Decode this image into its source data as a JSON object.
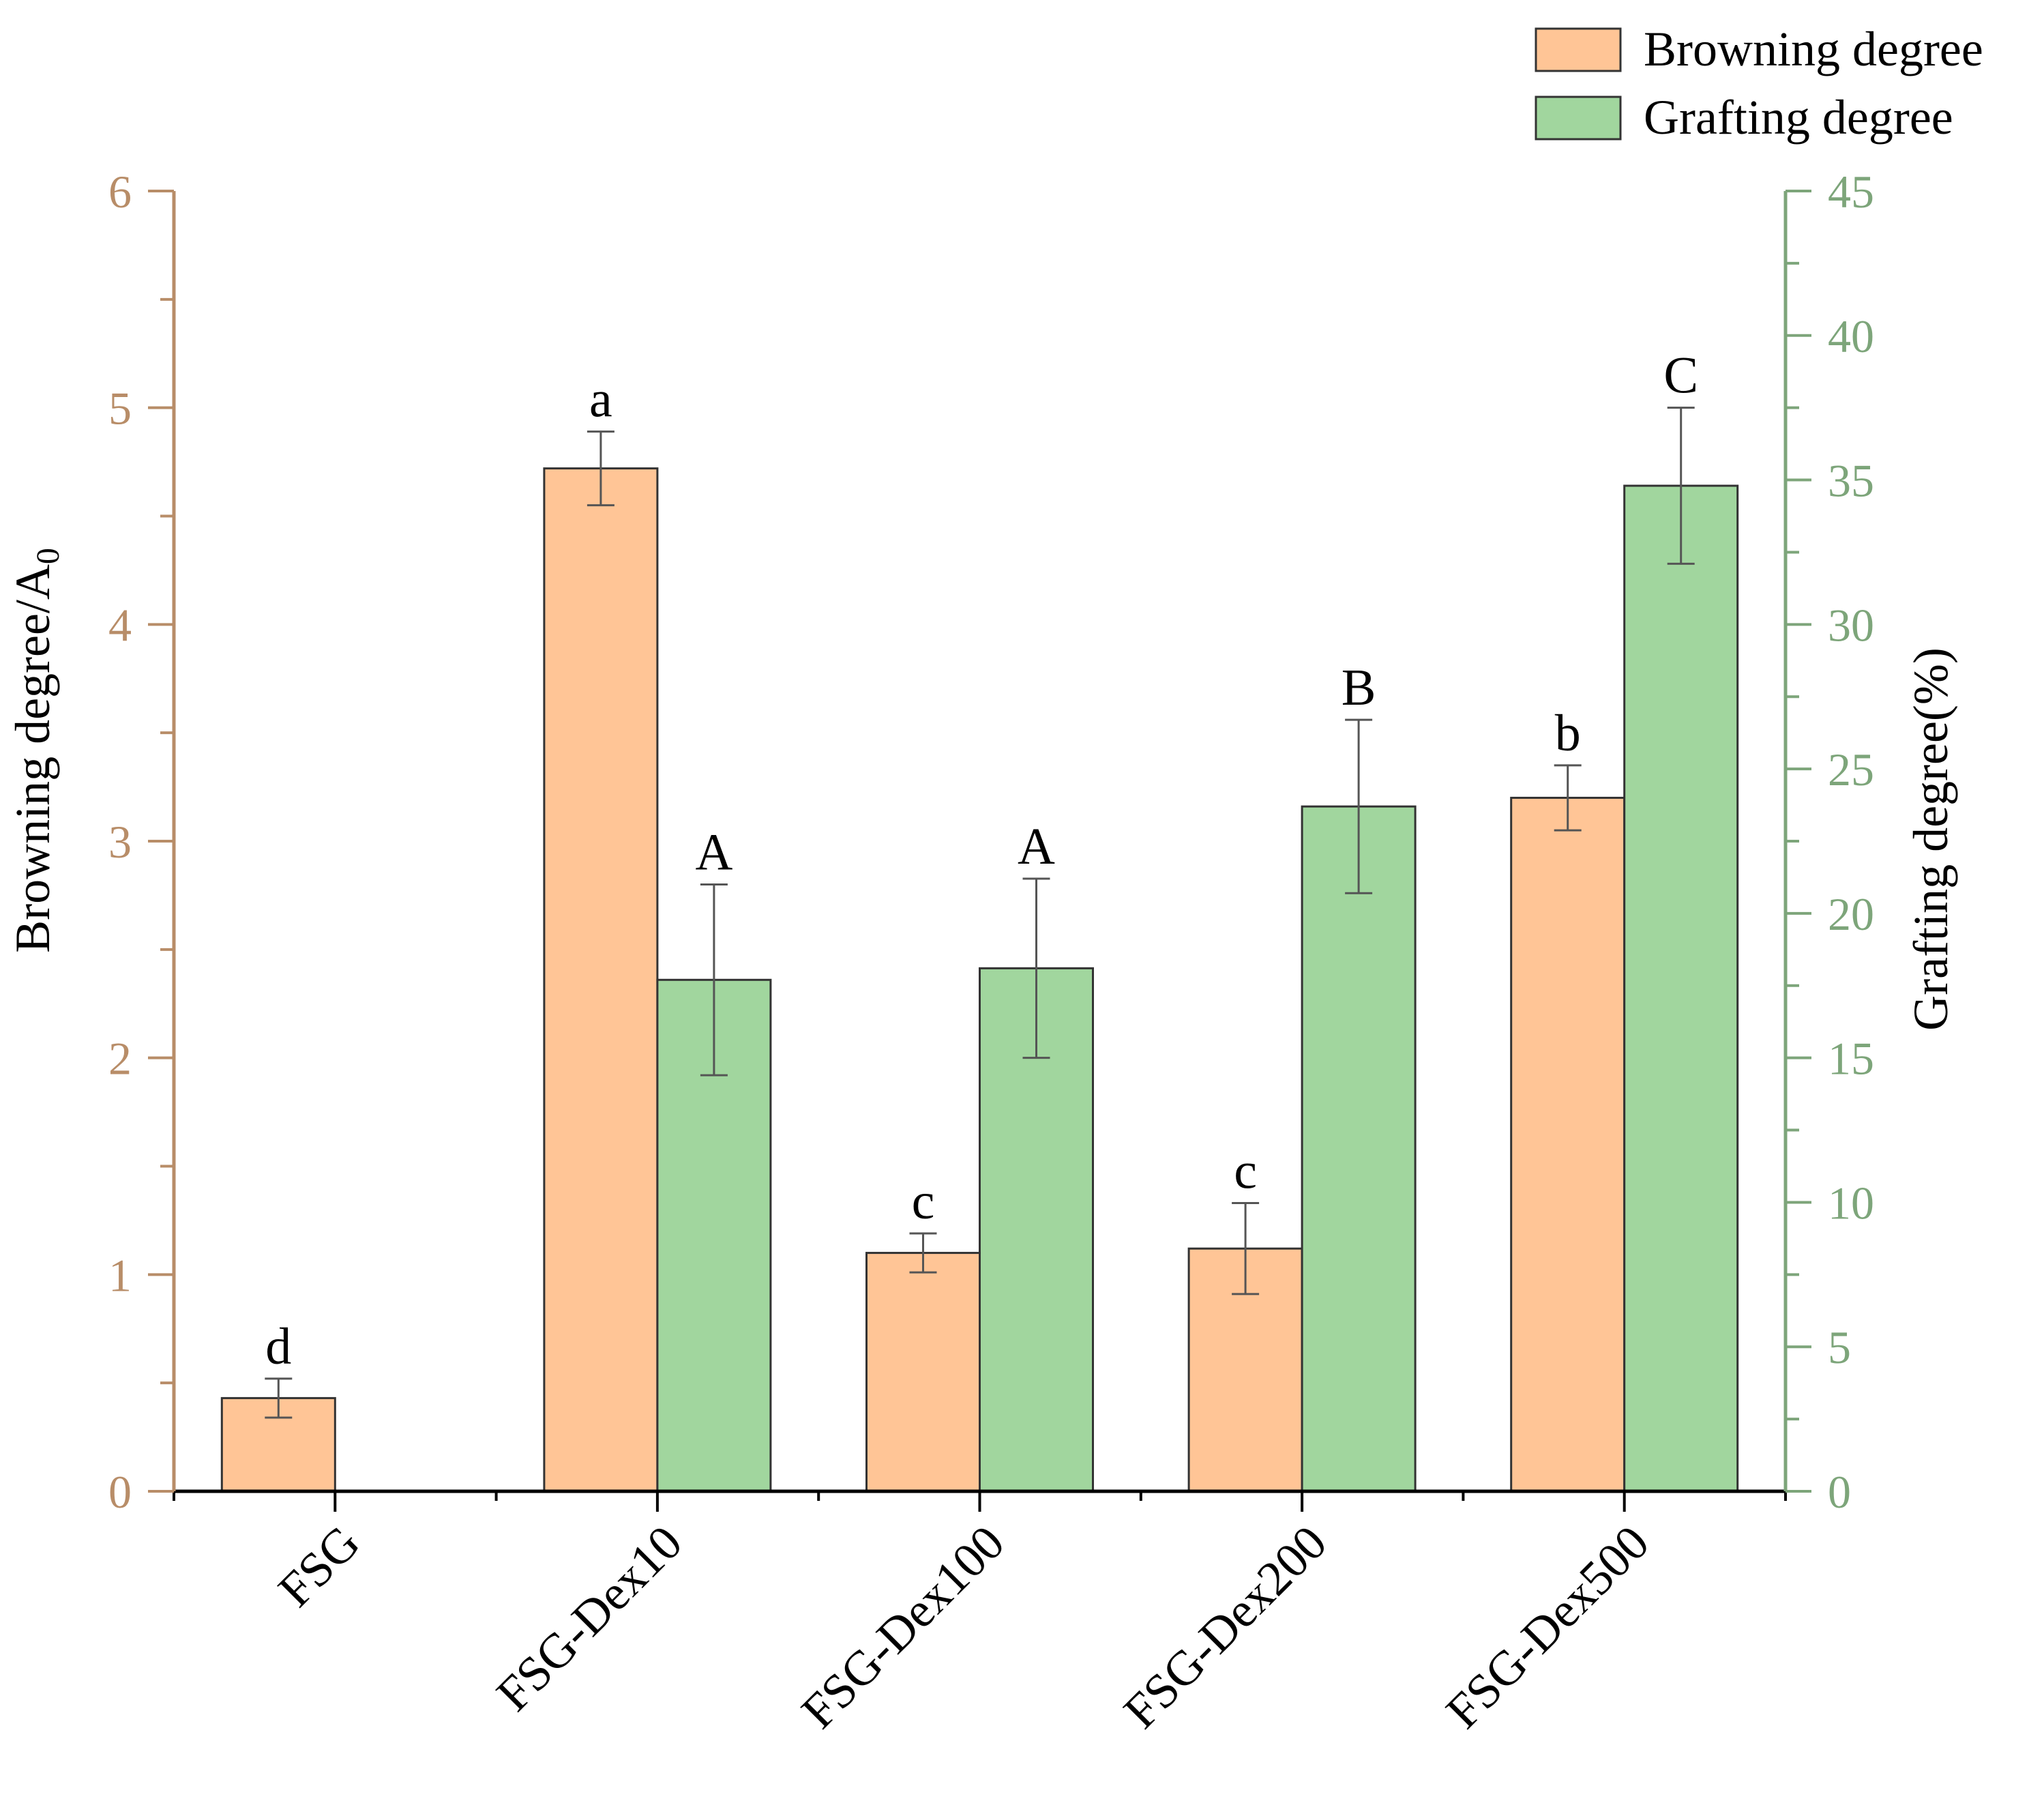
{
  "chart_data": {
    "type": "bar",
    "categories": [
      "FSG",
      "FSG-Dex10",
      "FSG-Dex100",
      "FSG-Dex200",
      "FSG-Dex500"
    ],
    "series": [
      {
        "name": "Browning degree",
        "axis": "left",
        "color": "#FFC596",
        "values": [
          0.43,
          4.72,
          1.1,
          1.12,
          3.2
        ],
        "errors": [
          0.09,
          0.17,
          0.09,
          0.21,
          0.15
        ],
        "letters": [
          "d",
          "a",
          "c",
          "c",
          "b"
        ]
      },
      {
        "name": "Grafting degree",
        "axis": "right",
        "color": "#A1D69E",
        "values": [
          null,
          17.7,
          18.1,
          23.7,
          34.8
        ],
        "errors": [
          null,
          3.3,
          3.1,
          3.0,
          2.7
        ],
        "letters": [
          null,
          "A",
          "A",
          "B",
          "C"
        ]
      }
    ],
    "y_left": {
      "label": "Browning degree/A",
      "label_subscript": "0",
      "lim": [
        0,
        6
      ],
      "ticks": [
        "0",
        "1",
        "2",
        "3",
        "4",
        "5",
        "6"
      ],
      "color": "#B88D68"
    },
    "y_right": {
      "label": "Grafting degree(%)",
      "lim": [
        0,
        45
      ],
      "ticks": [
        "0",
        "5",
        "10",
        "15",
        "20",
        "25",
        "30",
        "35",
        "40",
        "45"
      ],
      "color": "#7DA57A"
    },
    "legend": {
      "position": "top-right"
    },
    "grid": false
  }
}
